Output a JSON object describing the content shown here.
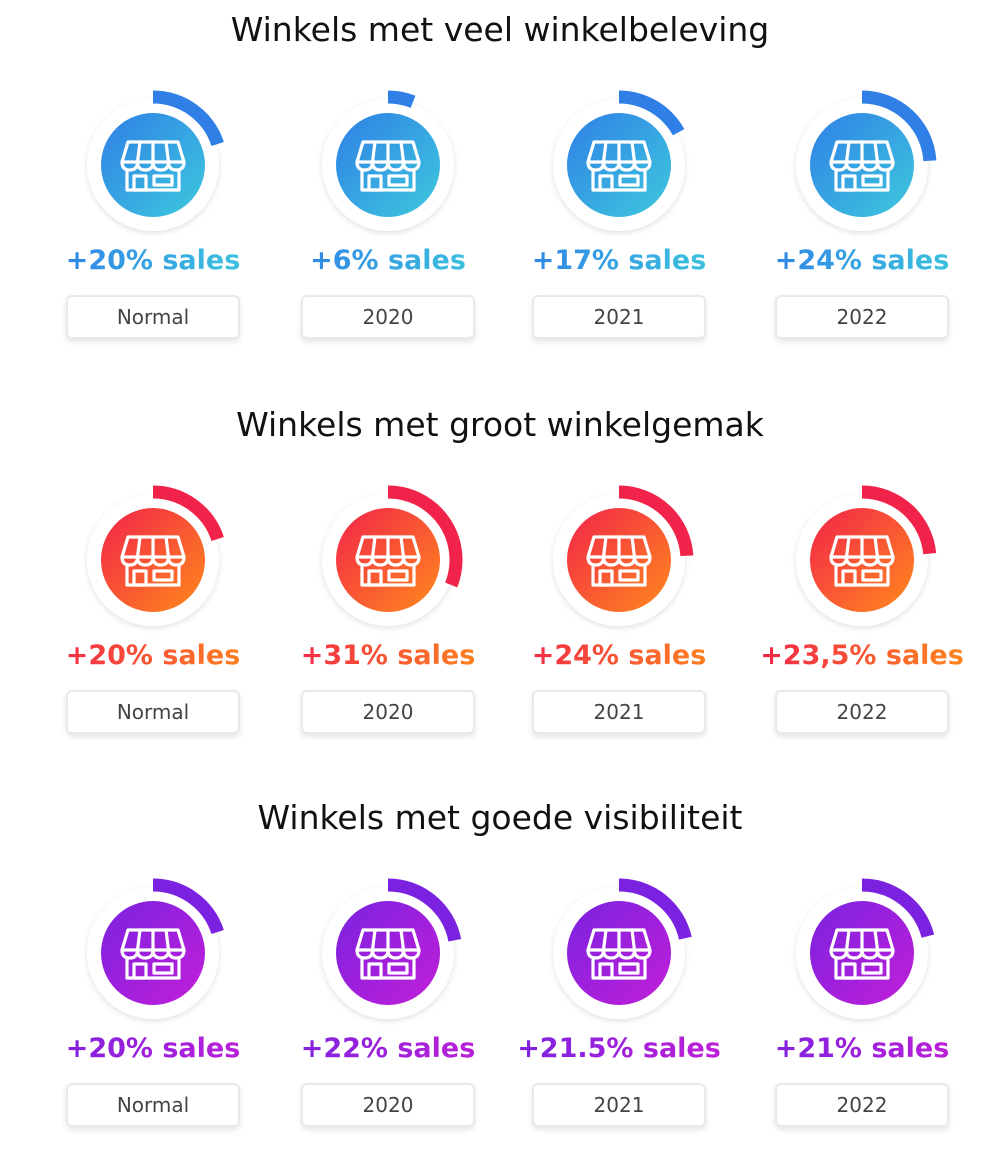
{
  "chart_data": [
    {
      "type": "pie",
      "title": "Winkels met veel winkelbeleving",
      "categories": [
        "Normal",
        "2020",
        "2021",
        "2022"
      ],
      "value_labels": [
        "+20% sales",
        "+6% sales",
        "+17% sales",
        "+24% sales"
      ],
      "values": [
        20,
        6,
        17,
        24
      ],
      "colors": {
        "start": "#2f7fe6",
        "end": "#3ec9dd"
      }
    },
    {
      "type": "pie",
      "title": "Winkels met groot winkelgemak",
      "categories": [
        "Normal",
        "2020",
        "2021",
        "2022"
      ],
      "value_labels": [
        "+20% sales",
        "+31% sales",
        "+24% sales",
        "+23,5% sales"
      ],
      "values": [
        20,
        31,
        24,
        23.5
      ],
      "colors": {
        "start": "#f2234a",
        "end": "#ff8a1c"
      }
    },
    {
      "type": "pie",
      "title": "Winkels met goede visibiliteit",
      "categories": [
        "Normal",
        "2020",
        "2021",
        "2022"
      ],
      "value_labels": [
        "+20% sales",
        "+22% sales",
        "+21.5% sales",
        "+21% sales"
      ],
      "values": [
        20,
        22,
        21.5,
        21
      ],
      "colors": {
        "start": "#7a22e0",
        "end": "#c21fd8"
      }
    }
  ],
  "icon": "store-icon"
}
